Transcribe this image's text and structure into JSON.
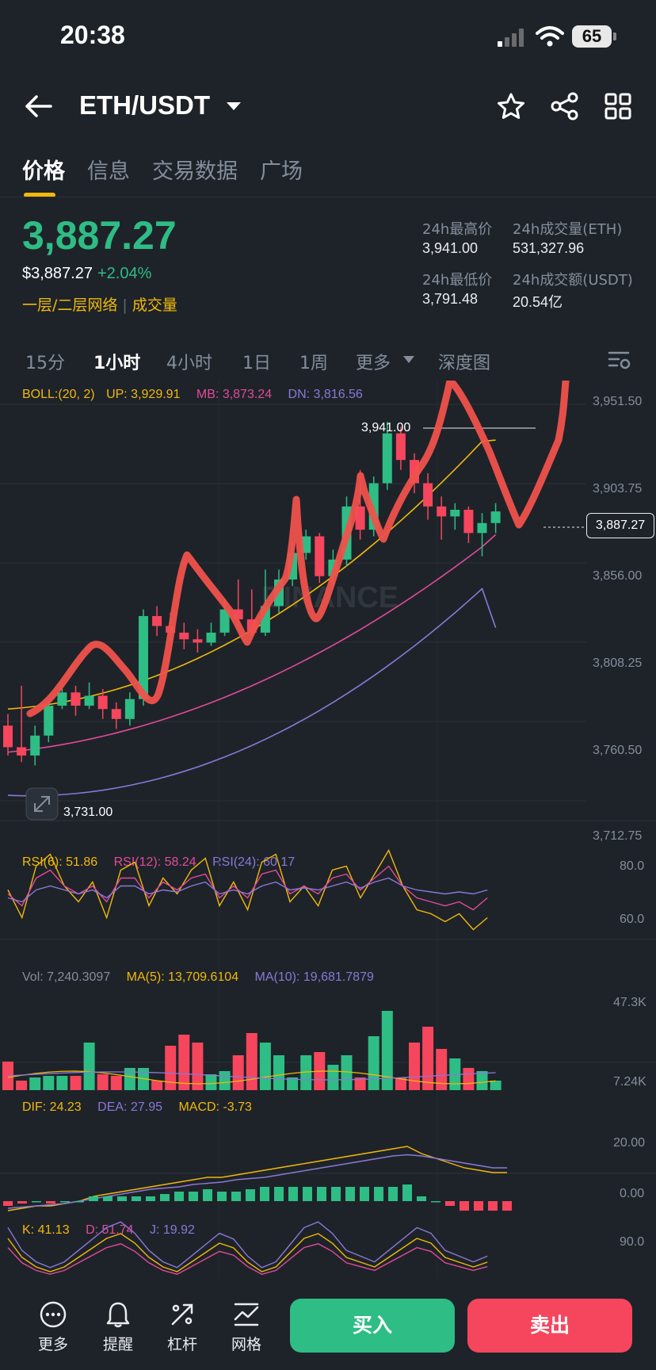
{
  "status_bar": {
    "time": "20:38",
    "battery": "65"
  },
  "header": {
    "pair": "ETH/USDT"
  },
  "tabs": [
    {
      "label": "价格",
      "active": true
    },
    {
      "label": "信息"
    },
    {
      "label": "交易数据"
    },
    {
      "label": "广场"
    }
  ],
  "ticker": {
    "last_price": "3,887.27",
    "usd_price": "$3,887.27",
    "change": "+2.04%",
    "tag1": "一层/二层网络",
    "tag2": "成交量",
    "stats": {
      "high_label": "24h最高价",
      "high": "3,941.00",
      "low_label": "24h最低价",
      "low": "3,791.48",
      "vol_base_label": "24h成交量(ETH)",
      "vol_base": "531,327.96",
      "vol_quote_label": "24h成交额(USDT)",
      "vol_quote": "20.54亿"
    }
  },
  "intervals": [
    "15分",
    "1小时",
    "4小时",
    "1日",
    "1周",
    "更多",
    "深度图"
  ],
  "active_interval": "1小时",
  "indicators": {
    "boll": {
      "label": "BOLL:(20, 2)",
      "up": "UP: 3,929.91",
      "mb": "MB: 3,873.24",
      "dn": "DN: 3,816.56"
    },
    "rsi": {
      "r6": "RSI(6): 51.86",
      "r12": "RSI(12): 58.24",
      "r24": "RSI(24): 60.17"
    },
    "vol": {
      "vol": "Vol: 7,240.3097",
      "ma5": "MA(5): 13,709.6104",
      "ma10": "MA(10): 19,681.7879"
    },
    "macd": {
      "dif": "DIF: 24.23",
      "dea": "DEA: 27.95",
      "macd": "MACD: -3.73"
    },
    "kdj": {
      "k": "K: 41.13",
      "d": "D: 51.74",
      "j": "J: 19.92"
    }
  },
  "price_axis": [
    "3,951.50",
    "3,903.75",
    "3,856.00",
    "3,808.25",
    "3,760.50",
    "3,712.75"
  ],
  "current_price_tag": "3,887.27",
  "high_marker": "3,941.00",
  "low_marker": "3,731.00",
  "rsi_axis": [
    "80.0",
    "60.0"
  ],
  "vol_axis": [
    "47.3K",
    "7.24K"
  ],
  "macd_axis": [
    "20.00",
    "0.00"
  ],
  "kdj_axis": [
    "90.0"
  ],
  "watermark": "BINANCE",
  "bottom_nav": [
    {
      "label": "更多",
      "icon": "more-icon"
    },
    {
      "label": "提醒",
      "icon": "bell-icon"
    },
    {
      "label": "杠杆",
      "icon": "leverage-icon"
    },
    {
      "label": "网格",
      "icon": "grid-bot-icon"
    }
  ],
  "buy_label": "买入",
  "sell_label": "卖出",
  "colors": {
    "up": "#2ebd85",
    "down": "#f6465d",
    "accent": "#f0b90b",
    "ma_mid": "#e24a9a",
    "ma_low": "#8a78d8",
    "annotation": "#f0524b"
  }
}
